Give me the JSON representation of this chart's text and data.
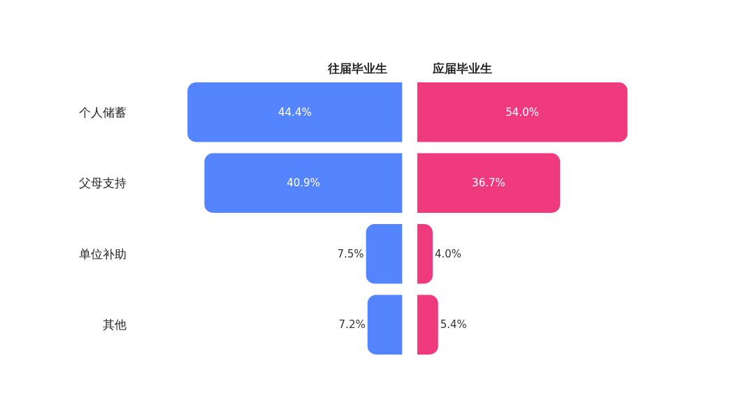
{
  "chart_data": [
    {
      "type": "bar",
      "orientation": "horizontal",
      "title": "往届毕业生",
      "categories": [
        "个人储蓄",
        "父母支持",
        "单位补助",
        "其他"
      ],
      "values": [
        44.4,
        40.9,
        7.5,
        7.2
      ],
      "value_labels": [
        "44.4%",
        "40.9%",
        "7.5%",
        "7.2%"
      ],
      "color": "#5585fe",
      "tick_labels": "y"
    },
    {
      "type": "bar",
      "orientation": "horizontal",
      "title": "应届毕业生",
      "categories": [
        null,
        null,
        null,
        null
      ],
      "values": [
        54.0,
        36.7,
        4.0,
        5.4
      ],
      "value_labels": [
        "54.0%",
        "36.7%",
        "4.0%",
        "5.4%"
      ],
      "color": "#ef3a7e",
      "tick_labels": false
    }
  ]
}
